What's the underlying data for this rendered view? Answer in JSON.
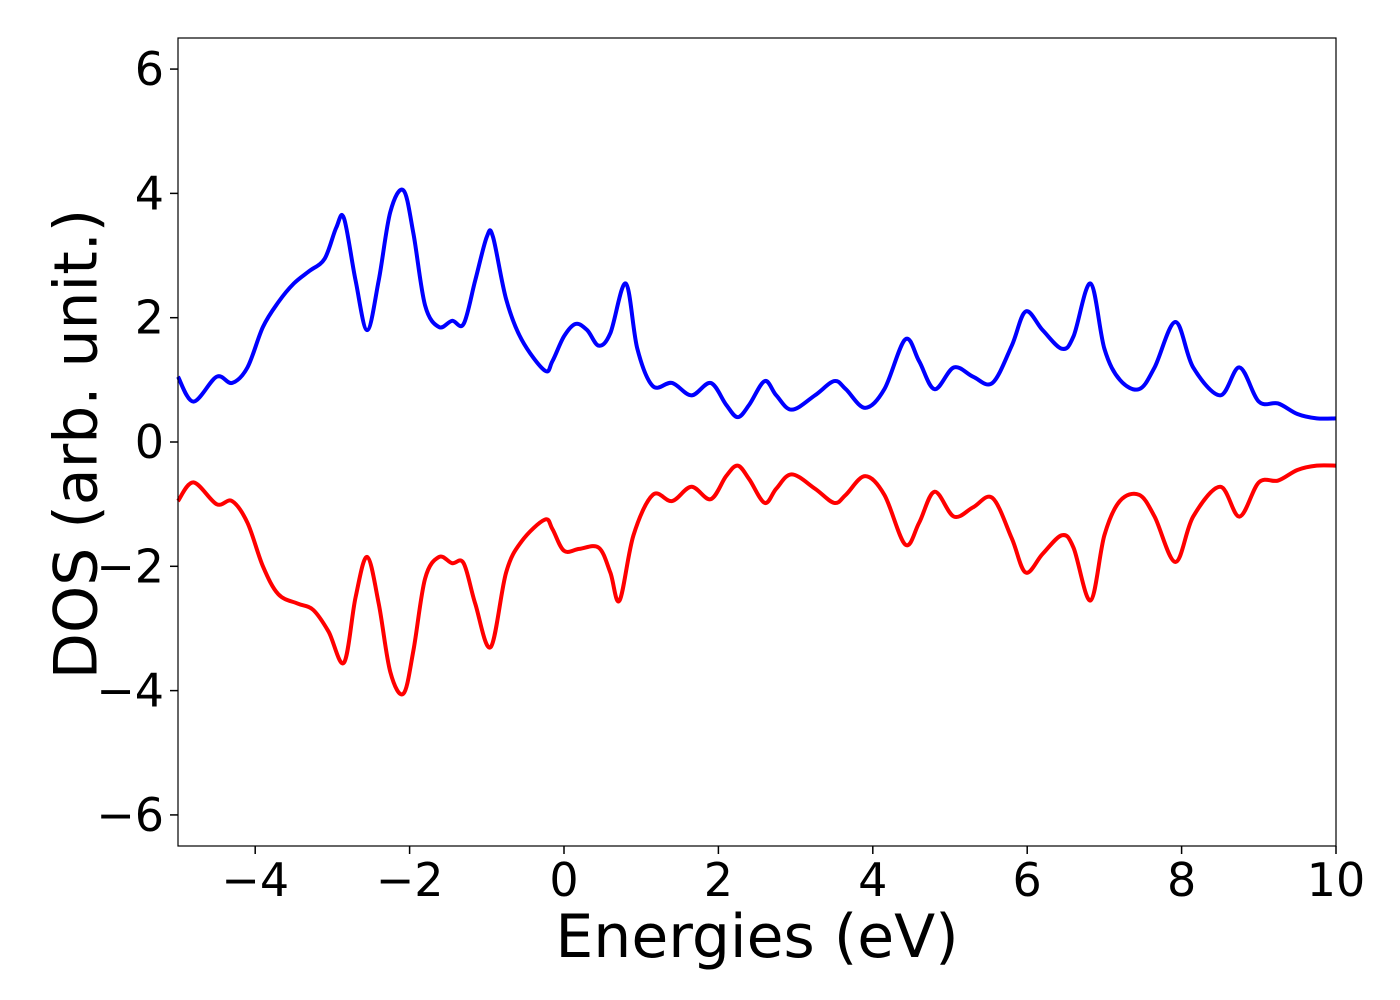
{
  "chart_data": {
    "type": "line",
    "title": "",
    "xlabel": "Energies (eV)",
    "ylabel": "DOS (arb. unit.)",
    "xlim": [
      -5,
      10
    ],
    "ylim": [
      -6.5,
      6.5
    ],
    "xticks": [
      -4,
      -2,
      0,
      2,
      4,
      6,
      8,
      10
    ],
    "yticks": [
      -6,
      -4,
      -2,
      0,
      2,
      4,
      6
    ],
    "xtick_labels": [
      "−4",
      "−2",
      "0",
      "2",
      "4",
      "6",
      "8",
      "10"
    ],
    "ytick_labels": [
      "−6",
      "−4",
      "−2",
      "0",
      "2",
      "4",
      "6"
    ],
    "grid": false,
    "legend": "none",
    "series": [
      {
        "color": "#0000ff",
        "x": [
          -5,
          -4.8,
          -4.5,
          -4.3,
          -4.1,
          -3.9,
          -3.7,
          -3.5,
          -3.3,
          -3.1,
          -2.95,
          -2.85,
          -2.7,
          -2.55,
          -2.4,
          -2.25,
          -2.08,
          -1.95,
          -1.8,
          -1.62,
          -1.45,
          -1.3,
          -1.15,
          -1.0,
          -0.92,
          -0.75,
          -0.55,
          -0.25,
          -0.15,
          0.0,
          0.15,
          0.3,
          0.45,
          0.6,
          0.8,
          0.95,
          1.15,
          1.4,
          1.65,
          1.9,
          2.1,
          2.25,
          2.4,
          2.6,
          2.75,
          2.95,
          3.25,
          3.5,
          3.65,
          3.9,
          4.15,
          4.42,
          4.6,
          4.8,
          5.05,
          5.3,
          5.55,
          5.8,
          5.98,
          6.2,
          6.45,
          6.6,
          6.82,
          7.0,
          7.2,
          7.45,
          7.65,
          7.92,
          8.15,
          8.5,
          8.75,
          9.0,
          9.25,
          9.5,
          9.75,
          10.0
        ],
        "y": [
          1.05,
          0.65,
          1.05,
          0.95,
          1.2,
          1.85,
          2.25,
          2.55,
          2.75,
          2.95,
          3.45,
          3.6,
          2.6,
          1.8,
          2.6,
          3.7,
          4.05,
          3.35,
          2.2,
          1.85,
          1.95,
          1.9,
          2.6,
          3.3,
          3.3,
          2.3,
          1.65,
          1.15,
          1.3,
          1.7,
          1.9,
          1.8,
          1.55,
          1.75,
          2.55,
          1.5,
          0.9,
          0.95,
          0.75,
          0.95,
          0.6,
          0.4,
          0.6,
          0.98,
          0.75,
          0.52,
          0.75,
          0.98,
          0.85,
          0.55,
          0.85,
          1.65,
          1.3,
          0.85,
          1.2,
          1.05,
          0.95,
          1.55,
          2.1,
          1.8,
          1.5,
          1.7,
          2.55,
          1.5,
          1.0,
          0.85,
          1.2,
          1.93,
          1.2,
          0.75,
          1.2,
          0.65,
          0.62,
          0.45,
          0.38,
          0.38
        ]
      },
      {
        "color": "#ff0000",
        "x": [
          -5,
          -4.8,
          -4.5,
          -4.3,
          -4.1,
          -3.9,
          -3.7,
          -3.45,
          -3.25,
          -3.05,
          -2.85,
          -2.7,
          -2.55,
          -2.4,
          -2.25,
          -2.08,
          -1.95,
          -1.8,
          -1.62,
          -1.45,
          -1.3,
          -1.15,
          -0.95,
          -0.75,
          -0.55,
          -0.25,
          -0.15,
          0.0,
          0.2,
          0.45,
          0.6,
          0.72,
          0.9,
          1.15,
          1.4,
          1.65,
          1.9,
          2.1,
          2.25,
          2.4,
          2.6,
          2.75,
          2.95,
          3.25,
          3.5,
          3.65,
          3.9,
          4.15,
          4.42,
          4.6,
          4.8,
          5.05,
          5.3,
          5.55,
          5.8,
          5.98,
          6.2,
          6.45,
          6.6,
          6.82,
          7.0,
          7.2,
          7.45,
          7.65,
          7.92,
          8.15,
          8.5,
          8.75,
          9.0,
          9.25,
          9.5,
          9.75,
          10.0
        ],
        "y": [
          -0.95,
          -0.65,
          -1.0,
          -0.95,
          -1.3,
          -2.0,
          -2.45,
          -2.6,
          -2.7,
          -3.05,
          -3.55,
          -2.5,
          -1.85,
          -2.6,
          -3.7,
          -4.05,
          -3.35,
          -2.2,
          -1.85,
          -1.95,
          -1.95,
          -2.6,
          -3.3,
          -2.1,
          -1.6,
          -1.25,
          -1.4,
          -1.75,
          -1.72,
          -1.7,
          -2.1,
          -2.55,
          -1.5,
          -0.85,
          -0.95,
          -0.72,
          -0.92,
          -0.55,
          -0.38,
          -0.6,
          -0.98,
          -0.75,
          -0.52,
          -0.75,
          -0.98,
          -0.85,
          -0.55,
          -0.85,
          -1.65,
          -1.3,
          -0.8,
          -1.2,
          -1.05,
          -0.9,
          -1.55,
          -2.1,
          -1.8,
          -1.5,
          -1.7,
          -2.55,
          -1.5,
          -0.95,
          -0.85,
          -1.2,
          -1.93,
          -1.2,
          -0.72,
          -1.2,
          -0.65,
          -0.62,
          -0.45,
          -0.38,
          -0.38
        ]
      }
    ]
  }
}
